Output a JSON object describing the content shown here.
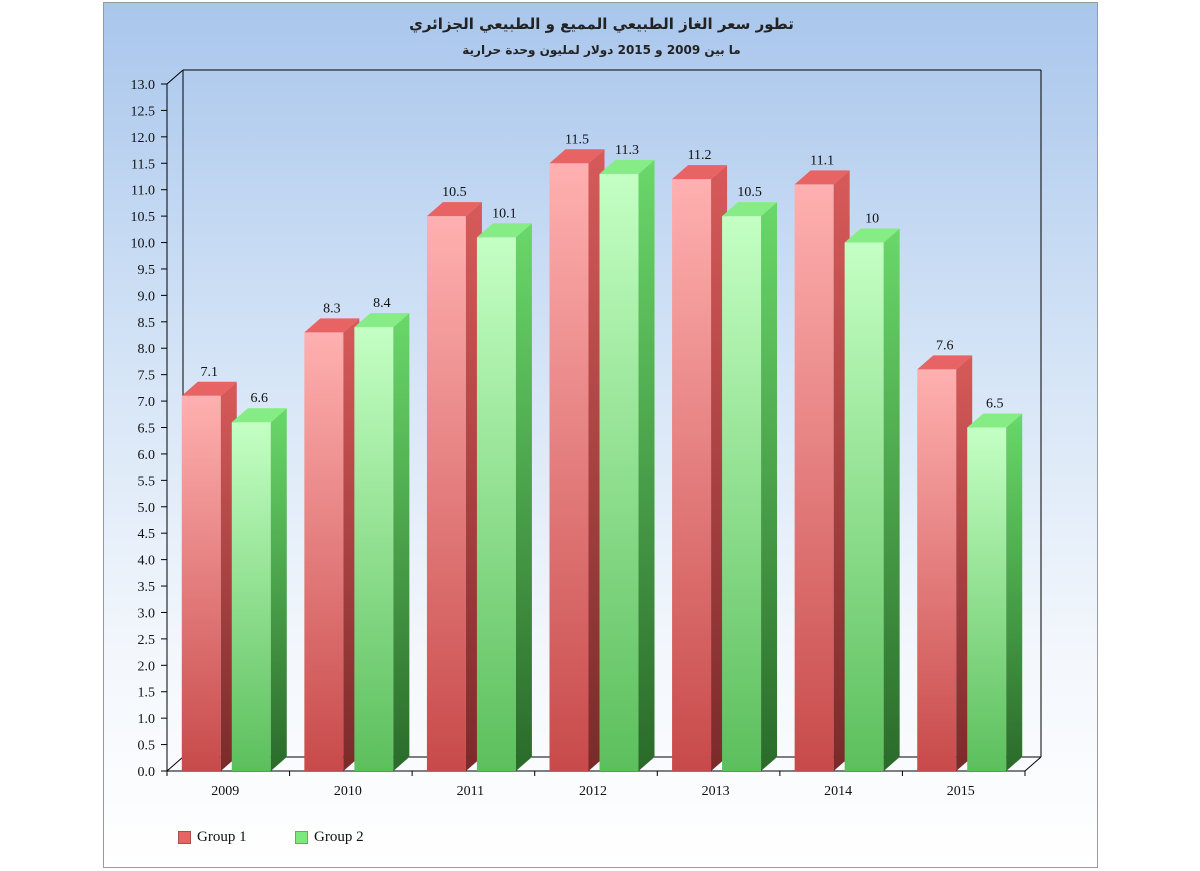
{
  "chart_data": {
    "type": "bar",
    "title": "تطور سعر الغاز الطبيعي المميع و الطبيعي الجزائري",
    "subtitle": "ما بين 2009 و 2015 دولار لمليون وحدة حرارية",
    "categories": [
      "2009",
      "2010",
      "2011",
      "2012",
      "2013",
      "2014",
      "2015"
    ],
    "series": [
      {
        "name": "Group 1",
        "values": [
          7.1,
          8.3,
          10.5,
          11.5,
          11.2,
          11.1,
          7.6
        ],
        "labels": [
          "7.1",
          "8.3",
          "10.5",
          "11.5",
          "11.2",
          "11.1",
          "7.6"
        ]
      },
      {
        "name": "Group 2",
        "values": [
          6.6,
          8.4,
          10.1,
          11.3,
          10.5,
          10,
          6.5
        ],
        "labels": [
          "6.6",
          "8.4",
          "10.1",
          "11.3",
          "10.5",
          "10",
          "6.5"
        ]
      }
    ],
    "ylim": [
      0,
      13
    ],
    "ytick_step": 0.5,
    "ytick_labels": [
      "0.0",
      "0.5",
      "1.0",
      "1.5",
      "2.0",
      "2.5",
      "3.0",
      "3.5",
      "4.0",
      "4.5",
      "5.0",
      "5.5",
      "6.0",
      "6.5",
      "7.0",
      "7.5",
      "8.0",
      "8.5",
      "9.0",
      "9.5",
      "10.0",
      "10.5",
      "11.0",
      "11.5",
      "12.0",
      "12.5",
      "13.0"
    ],
    "xlabel": "",
    "ylabel": "",
    "grid": false,
    "legend_position": "bottom-left",
    "style": "3d-bar",
    "colors": {
      "group1_light": "#ffb0b0",
      "group1_dark": "#c94b4b",
      "group1_top": "#e56464",
      "group1_side": "#a83a3a",
      "group2_light": "#c2ffc2",
      "group2_dark": "#5fc05f",
      "group2_top": "#7de87d",
      "group2_side": "#3f9a3f"
    }
  }
}
